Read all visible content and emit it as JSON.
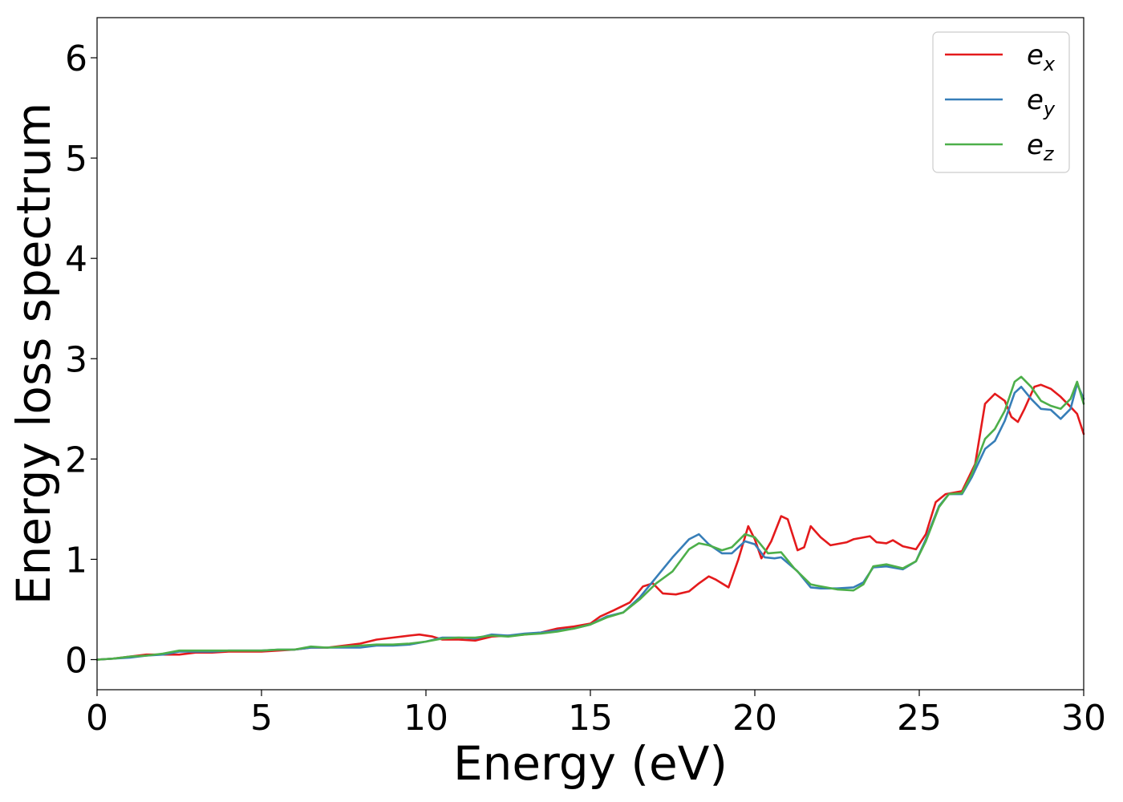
{
  "chart_data": {
    "type": "line",
    "xlabel": "Energy (eV)",
    "ylabel": "Energy loss spectrum",
    "xlim": [
      0,
      30
    ],
    "ylim": [
      -0.3,
      6.4
    ],
    "xticks": [
      0,
      5,
      10,
      15,
      20,
      25,
      30
    ],
    "yticks": [
      0,
      1,
      2,
      3,
      4,
      5,
      6
    ],
    "grid": false,
    "legend_position": "top-right",
    "series": [
      {
        "name": "e",
        "subscript": "x",
        "color": "#e41a1c",
        "points": [
          [
            0,
            0
          ],
          [
            0.5,
            0.01
          ],
          [
            1,
            0.03
          ],
          [
            1.5,
            0.05
          ],
          [
            2,
            0.05
          ],
          [
            2.5,
            0.05
          ],
          [
            3,
            0.07
          ],
          [
            3.5,
            0.07
          ],
          [
            4,
            0.08
          ],
          [
            4.5,
            0.08
          ],
          [
            5,
            0.08
          ],
          [
            5.5,
            0.09
          ],
          [
            6,
            0.1
          ],
          [
            6.5,
            0.12
          ],
          [
            7,
            0.12
          ],
          [
            7.5,
            0.14
          ],
          [
            8,
            0.16
          ],
          [
            8.5,
            0.2
          ],
          [
            9,
            0.22
          ],
          [
            9.5,
            0.24
          ],
          [
            9.8,
            0.25
          ],
          [
            10.2,
            0.23
          ],
          [
            10.5,
            0.2
          ],
          [
            11,
            0.2
          ],
          [
            11.5,
            0.19
          ],
          [
            12,
            0.23
          ],
          [
            12.5,
            0.24
          ],
          [
            13,
            0.25
          ],
          [
            13.5,
            0.27
          ],
          [
            14,
            0.31
          ],
          [
            14.5,
            0.33
          ],
          [
            15,
            0.36
          ],
          [
            15.3,
            0.43
          ],
          [
            15.7,
            0.49
          ],
          [
            16.2,
            0.57
          ],
          [
            16.6,
            0.73
          ],
          [
            16.9,
            0.76
          ],
          [
            17.2,
            0.66
          ],
          [
            17.6,
            0.65
          ],
          [
            18,
            0.68
          ],
          [
            18.3,
            0.76
          ],
          [
            18.6,
            0.83
          ],
          [
            18.8,
            0.8
          ],
          [
            19.2,
            0.72
          ],
          [
            19.5,
            1.0
          ],
          [
            19.8,
            1.33
          ],
          [
            20,
            1.2
          ],
          [
            20.2,
            1.01
          ],
          [
            20.5,
            1.18
          ],
          [
            20.8,
            1.43
          ],
          [
            21,
            1.4
          ],
          [
            21.3,
            1.09
          ],
          [
            21.5,
            1.12
          ],
          [
            21.7,
            1.33
          ],
          [
            22,
            1.22
          ],
          [
            22.3,
            1.14
          ],
          [
            22.8,
            1.17
          ],
          [
            23,
            1.2
          ],
          [
            23.5,
            1.23
          ],
          [
            23.7,
            1.17
          ],
          [
            24,
            1.16
          ],
          [
            24.2,
            1.19
          ],
          [
            24.5,
            1.13
          ],
          [
            24.9,
            1.1
          ],
          [
            25.2,
            1.25
          ],
          [
            25.5,
            1.57
          ],
          [
            25.8,
            1.65
          ],
          [
            26.3,
            1.68
          ],
          [
            26.7,
            1.95
          ],
          [
            27,
            2.55
          ],
          [
            27.3,
            2.65
          ],
          [
            27.6,
            2.58
          ],
          [
            27.8,
            2.42
          ],
          [
            28,
            2.37
          ],
          [
            28.2,
            2.5
          ],
          [
            28.5,
            2.72
          ],
          [
            28.7,
            2.74
          ],
          [
            29,
            2.7
          ],
          [
            29.3,
            2.62
          ],
          [
            29.6,
            2.52
          ],
          [
            29.8,
            2.45
          ],
          [
            30,
            2.25
          ]
        ]
      },
      {
        "name": "e",
        "subscript": "y",
        "color": "#377eb8",
        "points": [
          [
            0,
            0
          ],
          [
            0.5,
            0.01
          ],
          [
            1,
            0.02
          ],
          [
            1.5,
            0.04
          ],
          [
            2,
            0.05
          ],
          [
            2.5,
            0.08
          ],
          [
            3,
            0.08
          ],
          [
            3.5,
            0.08
          ],
          [
            4,
            0.09
          ],
          [
            4.5,
            0.09
          ],
          [
            5,
            0.09
          ],
          [
            5.5,
            0.1
          ],
          [
            6,
            0.1
          ],
          [
            6.5,
            0.12
          ],
          [
            7,
            0.12
          ],
          [
            7.5,
            0.12
          ],
          [
            8,
            0.12
          ],
          [
            8.5,
            0.14
          ],
          [
            9,
            0.14
          ],
          [
            9.5,
            0.15
          ],
          [
            10,
            0.18
          ],
          [
            10.5,
            0.22
          ],
          [
            11,
            0.22
          ],
          [
            11.5,
            0.21
          ],
          [
            12,
            0.25
          ],
          [
            12.5,
            0.24
          ],
          [
            13,
            0.26
          ],
          [
            13.5,
            0.27
          ],
          [
            14,
            0.29
          ],
          [
            14.5,
            0.31
          ],
          [
            15,
            0.35
          ],
          [
            15.5,
            0.43
          ],
          [
            16,
            0.47
          ],
          [
            16.5,
            0.62
          ],
          [
            17,
            0.82
          ],
          [
            17.5,
            1.02
          ],
          [
            18,
            1.2
          ],
          [
            18.3,
            1.25
          ],
          [
            18.6,
            1.15
          ],
          [
            19,
            1.06
          ],
          [
            19.3,
            1.06
          ],
          [
            19.7,
            1.18
          ],
          [
            20,
            1.15
          ],
          [
            20.3,
            1.02
          ],
          [
            20.6,
            1.01
          ],
          [
            20.8,
            1.02
          ],
          [
            21.3,
            0.88
          ],
          [
            21.7,
            0.72
          ],
          [
            22,
            0.71
          ],
          [
            22.5,
            0.71
          ],
          [
            23,
            0.72
          ],
          [
            23.3,
            0.77
          ],
          [
            23.6,
            0.92
          ],
          [
            24,
            0.93
          ],
          [
            24.5,
            0.9
          ],
          [
            24.9,
            0.98
          ],
          [
            25.2,
            1.2
          ],
          [
            25.6,
            1.53
          ],
          [
            25.9,
            1.65
          ],
          [
            26.3,
            1.65
          ],
          [
            26.6,
            1.82
          ],
          [
            27,
            2.1
          ],
          [
            27.3,
            2.18
          ],
          [
            27.6,
            2.38
          ],
          [
            27.9,
            2.66
          ],
          [
            28.1,
            2.72
          ],
          [
            28.4,
            2.6
          ],
          [
            28.7,
            2.5
          ],
          [
            29,
            2.49
          ],
          [
            29.3,
            2.4
          ],
          [
            29.6,
            2.5
          ],
          [
            29.8,
            2.75
          ],
          [
            30,
            2.6
          ]
        ]
      },
      {
        "name": "e",
        "subscript": "z",
        "color": "#4daf4a",
        "points": [
          [
            0,
            0
          ],
          [
            0.5,
            0.01
          ],
          [
            1,
            0.03
          ],
          [
            1.5,
            0.04
          ],
          [
            2,
            0.06
          ],
          [
            2.5,
            0.09
          ],
          [
            3,
            0.09
          ],
          [
            3.5,
            0.09
          ],
          [
            4,
            0.09
          ],
          [
            4.5,
            0.09
          ],
          [
            5,
            0.09
          ],
          [
            5.5,
            0.1
          ],
          [
            6,
            0.1
          ],
          [
            6.5,
            0.13
          ],
          [
            7,
            0.12
          ],
          [
            7.5,
            0.13
          ],
          [
            8,
            0.14
          ],
          [
            8.5,
            0.15
          ],
          [
            9,
            0.15
          ],
          [
            9.5,
            0.16
          ],
          [
            10,
            0.18
          ],
          [
            10.5,
            0.21
          ],
          [
            11,
            0.22
          ],
          [
            11.5,
            0.22
          ],
          [
            12,
            0.24
          ],
          [
            12.5,
            0.23
          ],
          [
            13,
            0.25
          ],
          [
            13.5,
            0.26
          ],
          [
            14,
            0.28
          ],
          [
            14.5,
            0.31
          ],
          [
            15,
            0.35
          ],
          [
            15.5,
            0.42
          ],
          [
            16,
            0.47
          ],
          [
            16.5,
            0.6
          ],
          [
            17,
            0.76
          ],
          [
            17.5,
            0.88
          ],
          [
            18,
            1.1
          ],
          [
            18.3,
            1.16
          ],
          [
            18.6,
            1.14
          ],
          [
            19,
            1.09
          ],
          [
            19.3,
            1.12
          ],
          [
            19.7,
            1.25
          ],
          [
            20,
            1.22
          ],
          [
            20.4,
            1.06
          ],
          [
            20.8,
            1.07
          ],
          [
            21.2,
            0.91
          ],
          [
            21.7,
            0.75
          ],
          [
            22,
            0.73
          ],
          [
            22.5,
            0.7
          ],
          [
            23,
            0.69
          ],
          [
            23.3,
            0.75
          ],
          [
            23.6,
            0.93
          ],
          [
            24,
            0.95
          ],
          [
            24.5,
            0.91
          ],
          [
            24.9,
            0.98
          ],
          [
            25.2,
            1.18
          ],
          [
            25.6,
            1.52
          ],
          [
            25.9,
            1.65
          ],
          [
            26.3,
            1.66
          ],
          [
            26.6,
            1.85
          ],
          [
            27,
            2.2
          ],
          [
            27.3,
            2.3
          ],
          [
            27.6,
            2.48
          ],
          [
            27.9,
            2.77
          ],
          [
            28.1,
            2.82
          ],
          [
            28.4,
            2.72
          ],
          [
            28.7,
            2.58
          ],
          [
            29,
            2.53
          ],
          [
            29.3,
            2.5
          ],
          [
            29.6,
            2.6
          ],
          [
            29.8,
            2.77
          ],
          [
            30,
            2.55
          ]
        ]
      }
    ]
  }
}
